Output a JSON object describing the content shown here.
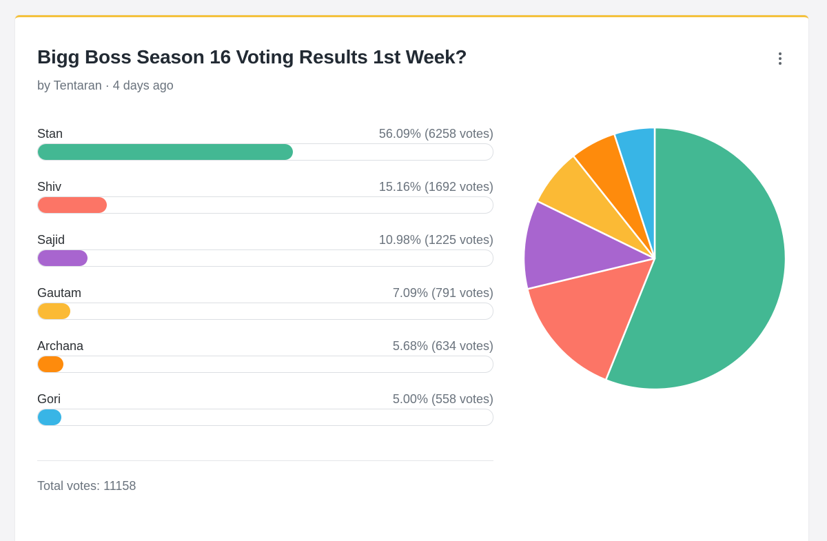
{
  "poll": {
    "title": "Bigg Boss Season 16 Voting Results 1st Week?",
    "meta": "by Tentaran · 4 days ago",
    "total_label": "Total votes:",
    "total_value": "11158",
    "menu_icon": "more-vertical-icon"
  },
  "chart_data": {
    "type": "pie",
    "title": "Bigg Boss Season 16 Voting Results 1st Week?",
    "categories": [
      "Stan",
      "Shiv",
      "Sajid",
      "Gautam",
      "Archana",
      "Gori"
    ],
    "values": [
      56.09,
      15.16,
      10.98,
      7.09,
      5.68,
      5.0
    ],
    "votes": [
      6258,
      1692,
      1225,
      791,
      634,
      558
    ],
    "colors": [
      "#43b893",
      "#fc7566",
      "#a865cf",
      "#fbba35",
      "#fe8b0c",
      "#38b5e6"
    ]
  },
  "options": [
    {
      "label": "Stan",
      "stat": "56.09% (6258 votes)",
      "percent": 56.09,
      "color": "#43b893"
    },
    {
      "label": "Shiv",
      "stat": "15.16% (1692 votes)",
      "percent": 15.16,
      "color": "#fc7566"
    },
    {
      "label": "Sajid",
      "stat": "10.98% (1225 votes)",
      "percent": 10.98,
      "color": "#a865cf"
    },
    {
      "label": "Gautam",
      "stat": "7.09% (791 votes)",
      "percent": 7.09,
      "color": "#fbba35"
    },
    {
      "label": "Archana",
      "stat": "5.68% (634 votes)",
      "percent": 5.68,
      "color": "#fe8b0c"
    },
    {
      "label": "Gori",
      "stat": "5.00% (558 votes)",
      "percent": 5.0,
      "color": "#38b5e6"
    }
  ]
}
